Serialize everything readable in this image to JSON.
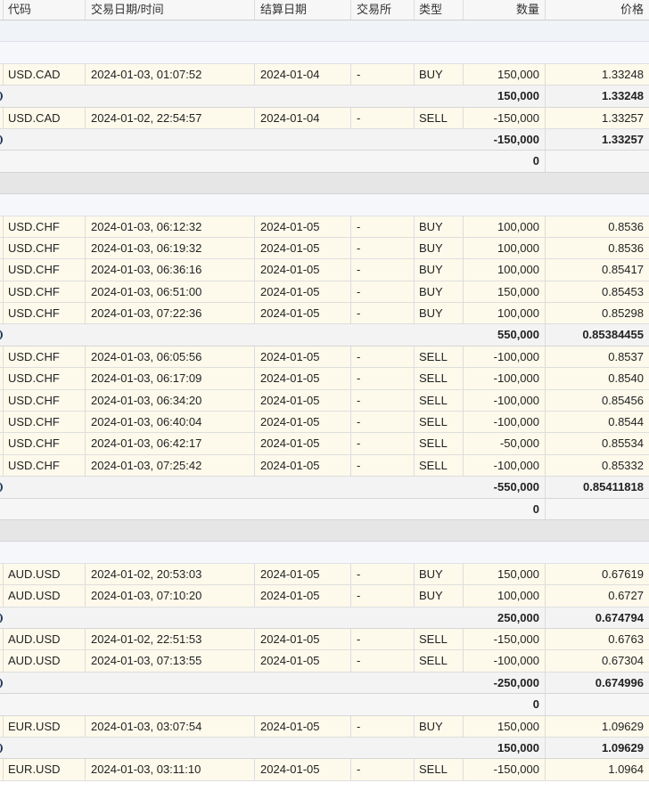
{
  "columns": {
    "symbol": "代码",
    "trade_datetime": "交易日期/时间",
    "settle_date": "结算日期",
    "exchange": "交易所",
    "type": "类型",
    "quantity": "数量",
    "price": "价格"
  },
  "rows": [
    {
      "kind": "group-light"
    },
    {
      "kind": "group-pale"
    },
    {
      "kind": "trade",
      "symbol": "USD.CAD",
      "datetime": "2024-01-03, 01:07:52",
      "settle": "2024-01-04",
      "exchange": "-",
      "type": "BUY",
      "qty": "150,000",
      "price": "1.33248"
    },
    {
      "kind": "subtotal",
      "qty": "150,000",
      "price": "1.33248"
    },
    {
      "kind": "trade",
      "symbol": "USD.CAD",
      "datetime": "2024-01-02, 22:54:57",
      "settle": "2024-01-04",
      "exchange": "-",
      "type": "SELL",
      "qty": "-150,000",
      "price": "1.33257"
    },
    {
      "kind": "subtotal",
      "qty": "-150,000",
      "price": "1.33257"
    },
    {
      "kind": "total",
      "qty": "0"
    },
    {
      "kind": "group-dark"
    },
    {
      "kind": "group-pale"
    },
    {
      "kind": "trade",
      "symbol": "USD.CHF",
      "datetime": "2024-01-03, 06:12:32",
      "settle": "2024-01-05",
      "exchange": "-",
      "type": "BUY",
      "qty": "100,000",
      "price": "0.8536"
    },
    {
      "kind": "trade",
      "symbol": "USD.CHF",
      "datetime": "2024-01-03, 06:19:32",
      "settle": "2024-01-05",
      "exchange": "-",
      "type": "BUY",
      "qty": "100,000",
      "price": "0.8536"
    },
    {
      "kind": "trade",
      "symbol": "USD.CHF",
      "datetime": "2024-01-03, 06:36:16",
      "settle": "2024-01-05",
      "exchange": "-",
      "type": "BUY",
      "qty": "100,000",
      "price": "0.85417"
    },
    {
      "kind": "trade",
      "symbol": "USD.CHF",
      "datetime": "2024-01-03, 06:51:00",
      "settle": "2024-01-05",
      "exchange": "-",
      "type": "BUY",
      "qty": "150,000",
      "price": "0.85453"
    },
    {
      "kind": "trade",
      "symbol": "USD.CHF",
      "datetime": "2024-01-03, 07:22:36",
      "settle": "2024-01-05",
      "exchange": "-",
      "type": "BUY",
      "qty": "100,000",
      "price": "0.85298"
    },
    {
      "kind": "subtotal",
      "qty": "550,000",
      "price": "0.85384455"
    },
    {
      "kind": "trade",
      "symbol": "USD.CHF",
      "datetime": "2024-01-03, 06:05:56",
      "settle": "2024-01-05",
      "exchange": "-",
      "type": "SELL",
      "qty": "-100,000",
      "price": "0.8537"
    },
    {
      "kind": "trade",
      "symbol": "USD.CHF",
      "datetime": "2024-01-03, 06:17:09",
      "settle": "2024-01-05",
      "exchange": "-",
      "type": "SELL",
      "qty": "-100,000",
      "price": "0.8540"
    },
    {
      "kind": "trade",
      "symbol": "USD.CHF",
      "datetime": "2024-01-03, 06:34:20",
      "settle": "2024-01-05",
      "exchange": "-",
      "type": "SELL",
      "qty": "-100,000",
      "price": "0.85456"
    },
    {
      "kind": "trade",
      "symbol": "USD.CHF",
      "datetime": "2024-01-03, 06:40:04",
      "settle": "2024-01-05",
      "exchange": "-",
      "type": "SELL",
      "qty": "-100,000",
      "price": "0.8544"
    },
    {
      "kind": "trade",
      "symbol": "USD.CHF",
      "datetime": "2024-01-03, 06:42:17",
      "settle": "2024-01-05",
      "exchange": "-",
      "type": "SELL",
      "qty": "-50,000",
      "price": "0.85534"
    },
    {
      "kind": "trade",
      "symbol": "USD.CHF",
      "datetime": "2024-01-03, 07:25:42",
      "settle": "2024-01-05",
      "exchange": "-",
      "type": "SELL",
      "qty": "-100,000",
      "price": "0.85332"
    },
    {
      "kind": "subtotal",
      "qty": "-550,000",
      "price": "0.85411818"
    },
    {
      "kind": "total",
      "qty": "0"
    },
    {
      "kind": "group-dark"
    },
    {
      "kind": "group-pale"
    },
    {
      "kind": "trade",
      "symbol": "AUD.USD",
      "datetime": "2024-01-02, 20:53:03",
      "settle": "2024-01-05",
      "exchange": "-",
      "type": "BUY",
      "qty": "150,000",
      "price": "0.67619"
    },
    {
      "kind": "trade",
      "symbol": "AUD.USD",
      "datetime": "2024-01-03, 07:10:20",
      "settle": "2024-01-05",
      "exchange": "-",
      "type": "BUY",
      "qty": "100,000",
      "price": "0.6727"
    },
    {
      "kind": "subtotal",
      "qty": "250,000",
      "price": "0.674794"
    },
    {
      "kind": "trade",
      "symbol": "AUD.USD",
      "datetime": "2024-01-02, 22:51:53",
      "settle": "2024-01-05",
      "exchange": "-",
      "type": "SELL",
      "qty": "-150,000",
      "price": "0.6763"
    },
    {
      "kind": "trade",
      "symbol": "AUD.USD",
      "datetime": "2024-01-03, 07:13:55",
      "settle": "2024-01-05",
      "exchange": "-",
      "type": "SELL",
      "qty": "-100,000",
      "price": "0.67304"
    },
    {
      "kind": "subtotal",
      "qty": "-250,000",
      "price": "0.674996"
    },
    {
      "kind": "total",
      "qty": "0"
    },
    {
      "kind": "trade",
      "symbol": "EUR.USD",
      "datetime": "2024-01-03, 03:07:54",
      "settle": "2024-01-05",
      "exchange": "-",
      "type": "BUY",
      "qty": "150,000",
      "price": "1.09629"
    },
    {
      "kind": "subtotal",
      "qty": "150,000",
      "price": "1.09629"
    },
    {
      "kind": "trade",
      "symbol": "EUR.USD",
      "datetime": "2024-01-03, 03:11:10",
      "settle": "2024-01-05",
      "exchange": "-",
      "type": "SELL",
      "qty": "-150,000",
      "price": "1.0964"
    }
  ]
}
